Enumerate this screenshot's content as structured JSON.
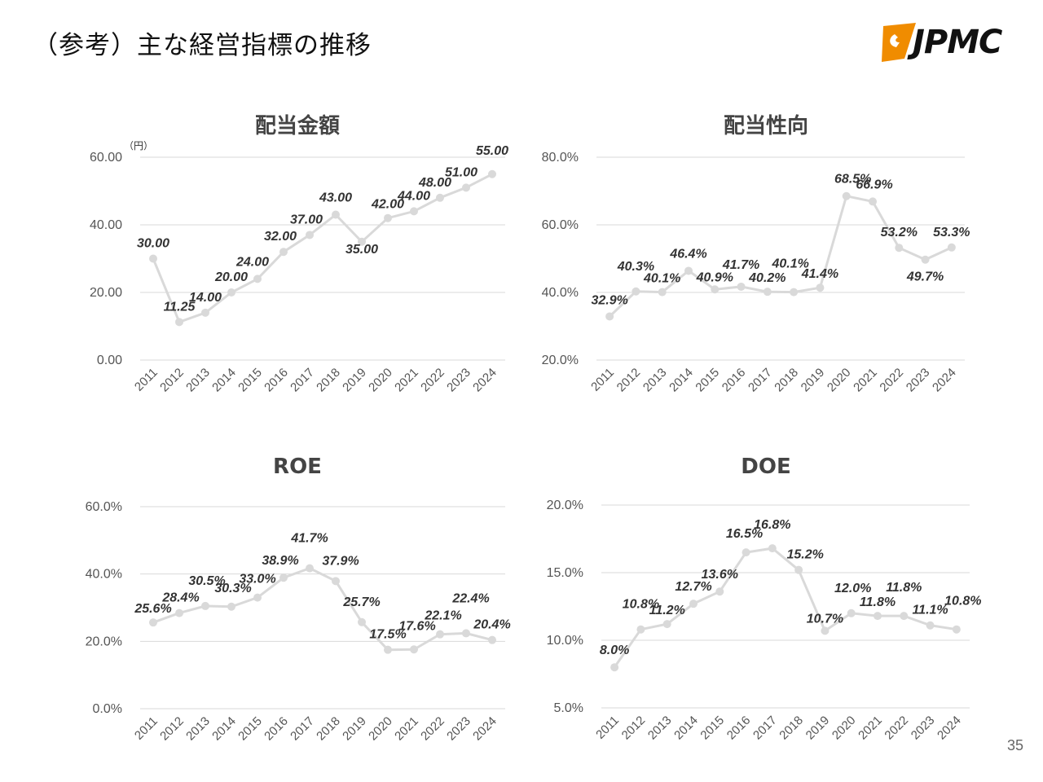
{
  "header": {
    "title": "（参考）主な経営指標の推移",
    "logo_text": "JPMC",
    "logo_color": "#F08C00"
  },
  "page_number": "35",
  "series_color": "#D9D9D9",
  "chart_data": [
    {
      "id": "dividend-amount",
      "type": "line",
      "title": "配当金額",
      "unit_label": "（円）",
      "categories": [
        "2011",
        "2012",
        "2013",
        "2014",
        "2015",
        "2016",
        "2017",
        "2018",
        "2019",
        "2020",
        "2021",
        "2022",
        "2023",
        "2024"
      ],
      "values": [
        30.0,
        11.25,
        14.0,
        20.0,
        24.0,
        32.0,
        37.0,
        43.0,
        35.0,
        42.0,
        44.0,
        48.0,
        51.0,
        55.0
      ],
      "data_labels": [
        "30.00",
        "11.25",
        "14.00",
        "20.00",
        "24.00",
        "32.00",
        "37.00",
        "43.00",
        "35.00",
        "42.00",
        "44.00",
        "48.00",
        "51.00",
        "55.00"
      ],
      "ylim": [
        0,
        60
      ],
      "yticks": [
        0,
        20,
        40,
        60
      ],
      "ytick_labels": [
        "0.00",
        "20.00",
        "40.00",
        "60.00"
      ],
      "grid": true
    },
    {
      "id": "payout-ratio",
      "type": "line",
      "title": "配当性向",
      "unit_label": "",
      "categories": [
        "2011",
        "2012",
        "2013",
        "2014",
        "2015",
        "2016",
        "2017",
        "2018",
        "2019",
        "2020",
        "2021",
        "2022",
        "2023",
        "2024"
      ],
      "values": [
        32.9,
        40.3,
        40.1,
        46.4,
        40.9,
        41.7,
        40.2,
        40.1,
        41.4,
        68.5,
        66.9,
        53.2,
        49.7,
        53.3
      ],
      "data_labels": [
        "32.9%",
        "40.3%",
        "40.1%",
        "46.4%",
        "40.9%",
        "41.7%",
        "40.2%",
        "40.1%",
        "41.4%",
        "68.5%",
        "66.9%",
        "53.2%",
        "49.7%",
        "53.3%"
      ],
      "ylim": [
        20,
        80
      ],
      "yticks": [
        20,
        40,
        60,
        80
      ],
      "ytick_labels": [
        "20.0%",
        "40.0%",
        "60.0%",
        "80.0%"
      ],
      "grid": true
    },
    {
      "id": "roe",
      "type": "line",
      "title": "ROE",
      "unit_label": "",
      "categories": [
        "2011",
        "2012",
        "2013",
        "2014",
        "2015",
        "2016",
        "2017",
        "2018",
        "2019",
        "2020",
        "2021",
        "2022",
        "2023",
        "2024"
      ],
      "values": [
        25.6,
        28.4,
        30.5,
        30.3,
        33.0,
        38.9,
        41.7,
        37.9,
        25.7,
        17.5,
        17.6,
        22.1,
        22.4,
        20.4
      ],
      "data_labels": [
        "25.6%",
        "28.4%",
        "30.5%",
        "30.3%",
        "33.0%",
        "38.9%",
        "41.7%",
        "37.9%",
        "25.7%",
        "17.5%",
        "17.6%",
        "22.1%",
        "22.4%",
        "20.4%"
      ],
      "ylim": [
        0,
        60
      ],
      "yticks": [
        0,
        20,
        40,
        60
      ],
      "ytick_labels": [
        "0.0%",
        "20.0%",
        "40.0%",
        "60.0%"
      ],
      "grid": true
    },
    {
      "id": "doe",
      "type": "line",
      "title": "DOE",
      "unit_label": "",
      "categories": [
        "2011",
        "2012",
        "2013",
        "2014",
        "2015",
        "2016",
        "2017",
        "2018",
        "2019",
        "2020",
        "2021",
        "2022",
        "2023",
        "2024"
      ],
      "values": [
        8.0,
        10.8,
        11.2,
        12.7,
        13.6,
        16.5,
        16.8,
        15.2,
        10.7,
        12.0,
        11.8,
        11.8,
        11.1,
        10.8
      ],
      "data_labels": [
        "8.0%",
        "10.8%",
        "11.2%",
        "12.7%",
        "13.6%",
        "16.5%",
        "16.8%",
        "15.2%",
        "10.7%",
        "12.0%",
        "11.8%",
        "11.8%",
        "11.1%",
        "10.8%"
      ],
      "ylim": [
        5,
        20
      ],
      "yticks": [
        5,
        10,
        15,
        20
      ],
      "ytick_labels": [
        "5.0%",
        "10.0%",
        "15.0%",
        "20.0%"
      ],
      "grid": true
    }
  ]
}
